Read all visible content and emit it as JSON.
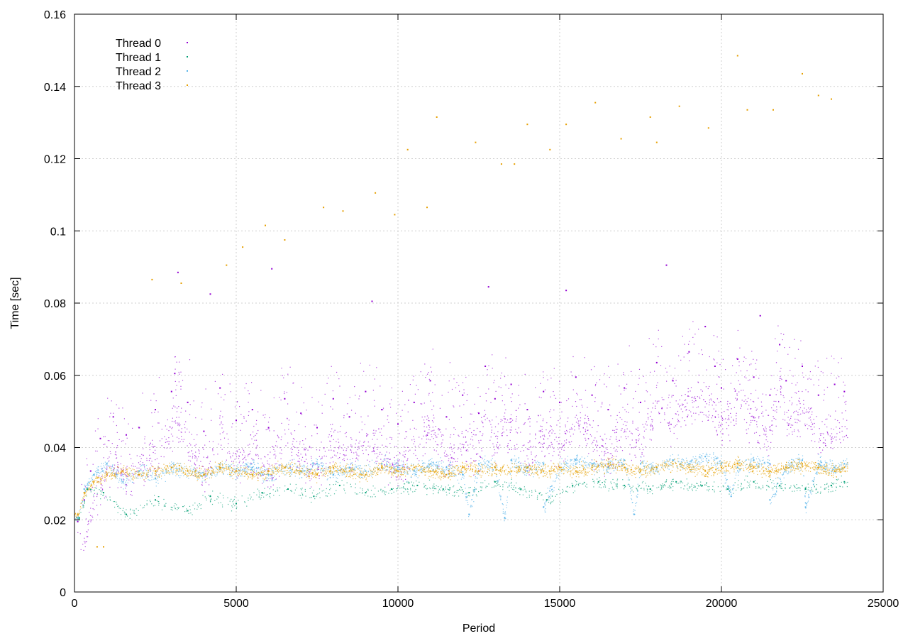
{
  "chart_data": {
    "type": "scatter",
    "title": "",
    "xlabel": "Period",
    "ylabel": "Time [sec]",
    "xlim": [
      0,
      25000
    ],
    "ylim": [
      0,
      0.16
    ],
    "xticks": [
      0,
      5000,
      10000,
      15000,
      20000,
      25000
    ],
    "xtick_labels": [
      "0",
      "5000",
      "10000",
      "15000",
      "20000",
      "25000"
    ],
    "yticks": [
      0,
      0.02,
      0.04,
      0.06,
      0.08,
      0.1,
      0.12,
      0.14,
      0.16
    ],
    "ytick_labels": [
      "0",
      "0.02",
      "0.04",
      "0.06",
      "0.08",
      "0.1",
      "0.12",
      "0.14",
      "0.16"
    ],
    "grid": true,
    "legend_position": "top-left",
    "series": [
      {
        "name": "Thread 0",
        "color": "#9400d3",
        "points": [
          [
            100,
            0.0195
          ],
          [
            300,
            0.0255
          ],
          [
            500,
            0.0335
          ],
          [
            800,
            0.0425
          ],
          [
            1200,
            0.0485
          ],
          [
            1600,
            0.0435
          ],
          [
            2000,
            0.0455
          ],
          [
            2500,
            0.0505
          ],
          [
            3000,
            0.0555
          ],
          [
            3100,
            0.0605
          ],
          [
            3500,
            0.0525
          ],
          [
            4000,
            0.0445
          ],
          [
            4500,
            0.0565
          ],
          [
            5000,
            0.0475
          ],
          [
            5500,
            0.0505
          ],
          [
            6000,
            0.0455
          ],
          [
            6500,
            0.0535
          ],
          [
            7000,
            0.0495
          ],
          [
            7500,
            0.0455
          ],
          [
            8000,
            0.0535
          ],
          [
            8500,
            0.0485
          ],
          [
            9000,
            0.0555
          ],
          [
            9500,
            0.0505
          ],
          [
            10000,
            0.0465
          ],
          [
            10500,
            0.0525
          ],
          [
            11000,
            0.0585
          ],
          [
            11500,
            0.0485
          ],
          [
            12000,
            0.0545
          ],
          [
            12500,
            0.0495
          ],
          [
            12700,
            0.0625
          ],
          [
            13000,
            0.0535
          ],
          [
            13500,
            0.0575
          ],
          [
            14000,
            0.0505
          ],
          [
            14500,
            0.0555
          ],
          [
            15000,
            0.0525
          ],
          [
            15500,
            0.0595
          ],
          [
            16000,
            0.0545
          ],
          [
            16500,
            0.0505
          ],
          [
            17000,
            0.0565
          ],
          [
            17500,
            0.0525
          ],
          [
            18000,
            0.0635
          ],
          [
            18500,
            0.0585
          ],
          [
            19000,
            0.0665
          ],
          [
            19500,
            0.0735
          ],
          [
            19800,
            0.0625
          ],
          [
            20000,
            0.0565
          ],
          [
            20500,
            0.0645
          ],
          [
            21000,
            0.0595
          ],
          [
            21500,
            0.0545
          ],
          [
            21800,
            0.0685
          ],
          [
            22000,
            0.0585
          ],
          [
            22500,
            0.0625
          ],
          [
            23000,
            0.0545
          ],
          [
            23500,
            0.0575
          ],
          [
            23800,
            0.0555
          ],
          [
            3200,
            0.0885
          ],
          [
            4200,
            0.0825
          ],
          [
            6100,
            0.0895
          ],
          [
            9200,
            0.0805
          ],
          [
            12800,
            0.0845
          ],
          [
            15200,
            0.0835
          ],
          [
            18300,
            0.0905
          ],
          [
            21200,
            0.0765
          ]
        ]
      },
      {
        "name": "Thread 1",
        "color": "#009e73",
        "points": [
          [
            150,
            0.0205
          ],
          [
            400,
            0.0285
          ],
          [
            900,
            0.0275
          ],
          [
            1600,
            0.0215
          ],
          [
            2500,
            0.0255
          ],
          [
            3500,
            0.0225
          ],
          [
            4200,
            0.0265
          ],
          [
            5000,
            0.0245
          ],
          [
            5800,
            0.0275
          ],
          [
            6600,
            0.0285
          ],
          [
            7400,
            0.0265
          ],
          [
            8200,
            0.0295
          ],
          [
            9000,
            0.0275
          ],
          [
            9800,
            0.0285
          ],
          [
            10600,
            0.0295
          ],
          [
            11400,
            0.0285
          ],
          [
            12200,
            0.0275
          ],
          [
            13000,
            0.0305
          ],
          [
            13800,
            0.0285
          ],
          [
            14600,
            0.0255
          ],
          [
            15400,
            0.0295
          ],
          [
            16200,
            0.0305
          ],
          [
            17000,
            0.0295
          ],
          [
            17800,
            0.0285
          ],
          [
            18600,
            0.0305
          ],
          [
            19400,
            0.0295
          ],
          [
            20200,
            0.0285
          ],
          [
            21000,
            0.0305
          ],
          [
            21800,
            0.0295
          ],
          [
            22600,
            0.0285
          ],
          [
            23400,
            0.0295
          ],
          [
            23800,
            0.0305
          ]
        ]
      },
      {
        "name": "Thread 2",
        "color": "#56b4e9",
        "points": [
          [
            100,
            0.0205
          ],
          [
            300,
            0.0285
          ],
          [
            600,
            0.0325
          ],
          [
            1000,
            0.0355
          ],
          [
            1500,
            0.0305
          ],
          [
            2000,
            0.0335
          ],
          [
            2500,
            0.0315
          ],
          [
            3000,
            0.0345
          ],
          [
            3500,
            0.0335
          ],
          [
            4000,
            0.0325
          ],
          [
            4500,
            0.0345
          ],
          [
            5000,
            0.0335
          ],
          [
            5500,
            0.0345
          ],
          [
            6000,
            0.0325
          ],
          [
            6500,
            0.0345
          ],
          [
            7000,
            0.0335
          ],
          [
            7500,
            0.0355
          ],
          [
            8000,
            0.0325
          ],
          [
            8500,
            0.0345
          ],
          [
            9000,
            0.0335
          ],
          [
            9500,
            0.0355
          ],
          [
            10000,
            0.0345
          ],
          [
            10500,
            0.0335
          ],
          [
            11000,
            0.0355
          ],
          [
            11500,
            0.0345
          ],
          [
            12000,
            0.0325
          ],
          [
            12500,
            0.0355
          ],
          [
            13000,
            0.0345
          ],
          [
            13500,
            0.0365
          ],
          [
            14000,
            0.0335
          ],
          [
            14500,
            0.0355
          ],
          [
            15000,
            0.0345
          ],
          [
            15500,
            0.0365
          ],
          [
            16000,
            0.0355
          ],
          [
            16500,
            0.0345
          ],
          [
            17000,
            0.0365
          ],
          [
            17500,
            0.0355
          ],
          [
            18000,
            0.0345
          ],
          [
            18500,
            0.0365
          ],
          [
            19000,
            0.0355
          ],
          [
            19500,
            0.0375
          ],
          [
            20000,
            0.0355
          ],
          [
            20500,
            0.0345
          ],
          [
            21000,
            0.0365
          ],
          [
            21500,
            0.0355
          ],
          [
            22000,
            0.0345
          ],
          [
            22500,
            0.0365
          ],
          [
            23000,
            0.0355
          ],
          [
            23500,
            0.0345
          ],
          [
            23800,
            0.0355
          ],
          [
            12200,
            0.0215
          ],
          [
            13300,
            0.0205
          ],
          [
            14500,
            0.0235
          ],
          [
            17300,
            0.0215
          ],
          [
            20300,
            0.0265
          ],
          [
            21500,
            0.0255
          ],
          [
            22600,
            0.0235
          ]
        ]
      },
      {
        "name": "Thread 3",
        "color": "#e69f00",
        "points": [
          [
            100,
            0.0215
          ],
          [
            300,
            0.0275
          ],
          [
            600,
            0.0305
          ],
          [
            1000,
            0.0325
          ],
          [
            1500,
            0.0335
          ],
          [
            2000,
            0.0325
          ],
          [
            2500,
            0.0335
          ],
          [
            3000,
            0.0345
          ],
          [
            3500,
            0.0335
          ],
          [
            4000,
            0.0325
          ],
          [
            4500,
            0.0345
          ],
          [
            5000,
            0.0335
          ],
          [
            5500,
            0.0325
          ],
          [
            6000,
            0.0335
          ],
          [
            6500,
            0.0345
          ],
          [
            7000,
            0.0335
          ],
          [
            7500,
            0.0325
          ],
          [
            8000,
            0.0345
          ],
          [
            8500,
            0.0335
          ],
          [
            9000,
            0.0325
          ],
          [
            9500,
            0.0345
          ],
          [
            10000,
            0.0335
          ],
          [
            10500,
            0.0345
          ],
          [
            11000,
            0.0335
          ],
          [
            11500,
            0.0325
          ],
          [
            12000,
            0.0345
          ],
          [
            12500,
            0.0335
          ],
          [
            13000,
            0.0345
          ],
          [
            13500,
            0.0335
          ],
          [
            14000,
            0.0345
          ],
          [
            14500,
            0.0335
          ],
          [
            15000,
            0.0345
          ],
          [
            15500,
            0.0335
          ],
          [
            16000,
            0.0345
          ],
          [
            16500,
            0.0355
          ],
          [
            17000,
            0.0345
          ],
          [
            17500,
            0.0335
          ],
          [
            18000,
            0.0345
          ],
          [
            18500,
            0.0355
          ],
          [
            19000,
            0.0345
          ],
          [
            19500,
            0.0335
          ],
          [
            20000,
            0.0345
          ],
          [
            20500,
            0.0355
          ],
          [
            21000,
            0.0345
          ],
          [
            21500,
            0.0335
          ],
          [
            22000,
            0.0345
          ],
          [
            22500,
            0.0355
          ],
          [
            23000,
            0.0345
          ],
          [
            23500,
            0.0335
          ],
          [
            23800,
            0.0345
          ],
          [
            700,
            0.0125
          ],
          [
            900,
            0.0125
          ],
          [
            2400,
            0.0865
          ],
          [
            3300,
            0.0855
          ],
          [
            4700,
            0.0905
          ],
          [
            5200,
            0.0955
          ],
          [
            5900,
            0.1015
          ],
          [
            6500,
            0.0975
          ],
          [
            7700,
            0.1065
          ],
          [
            8300,
            0.1055
          ],
          [
            9300,
            0.1105
          ],
          [
            9900,
            0.1045
          ],
          [
            10300,
            0.1225
          ],
          [
            11200,
            0.1315
          ],
          [
            12400,
            0.1245
          ],
          [
            13200,
            0.1185
          ],
          [
            14000,
            0.1295
          ],
          [
            15200,
            0.1295
          ],
          [
            16100,
            0.1355
          ],
          [
            16900,
            0.1255
          ],
          [
            18000,
            0.1245
          ],
          [
            18700,
            0.1345
          ],
          [
            19600,
            0.1285
          ],
          [
            20500,
            0.1485
          ],
          [
            20800,
            0.1335
          ],
          [
            21600,
            0.1335
          ],
          [
            22500,
            0.1435
          ],
          [
            23000,
            0.1375
          ],
          [
            23400,
            0.1365
          ],
          [
            10900,
            0.1065
          ],
          [
            13600,
            0.1185
          ],
          [
            14700,
            0.1225
          ],
          [
            17800,
            0.1315
          ]
        ]
      }
    ]
  }
}
